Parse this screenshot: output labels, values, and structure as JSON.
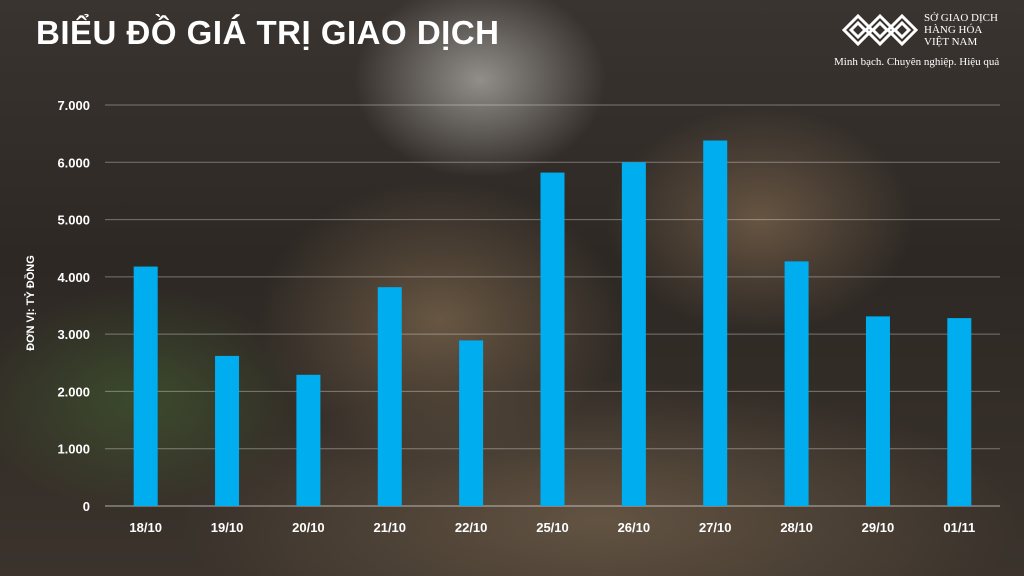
{
  "title": "BIỂU ĐỒ GIÁ TRỊ GIAO DỊCH",
  "brand": {
    "name": "SỞ GIAO DỊCH\nHÀNG HÓA\nVIỆT NAM",
    "tagline": "Minh bạch. Chuyên nghiệp. Hiệu quả"
  },
  "chart_data": {
    "type": "bar",
    "title": "BIỂU ĐỒ GIÁ TRỊ GIAO DỊCH",
    "ylabel": "ĐƠN VỊ: TỶ ĐỒNG",
    "xlabel": "",
    "categories": [
      "18/10",
      "19/10",
      "20/10",
      "21/10",
      "22/10",
      "25/10",
      "26/10",
      "27/10",
      "28/10",
      "29/10",
      "01/11"
    ],
    "values": [
      4180,
      2620,
      2290,
      3820,
      2890,
      5820,
      6000,
      6380,
      4270,
      3310,
      3280
    ],
    "ylim": [
      0,
      7000
    ],
    "yticks": [
      0,
      1000,
      2000,
      3000,
      4000,
      5000,
      6000,
      7000
    ],
    "ytick_labels": [
      "0",
      "1.000",
      "2.000",
      "3.000",
      "4.000",
      "5.000",
      "6.000",
      "7.000"
    ],
    "grid": true,
    "bar_color": "#00aeef"
  }
}
